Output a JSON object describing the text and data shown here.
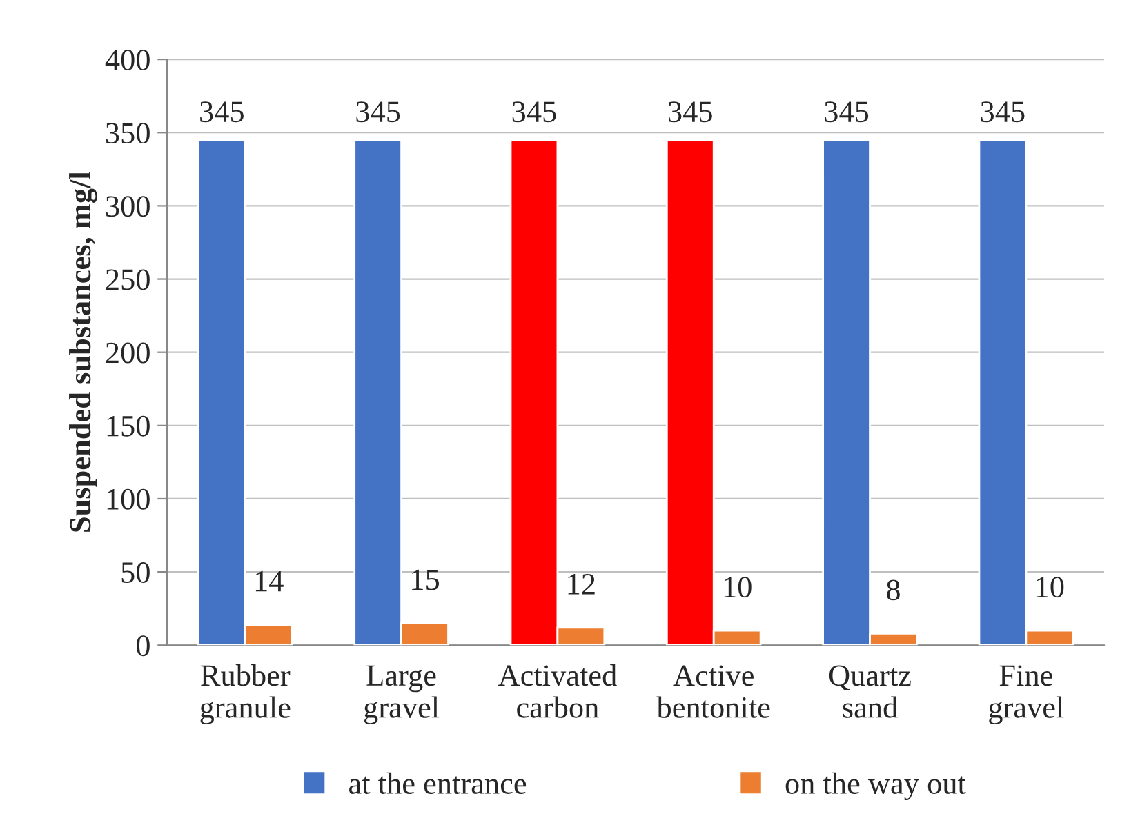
{
  "chart_data": {
    "type": "bar",
    "ylabel": "Suspended substances, mg/l",
    "categories": [
      "Rubber\ngranule",
      "Large\ngravel",
      "Activated\ncarbon",
      "Active\nbentonite",
      "Quartz\nsand",
      "Fine\ngravel"
    ],
    "series": [
      {
        "name": "at the entrance",
        "color": "#4472c4",
        "colors": [
          "#4472c4",
          "#4472c4",
          "#ff0000",
          "#ff0000",
          "#4472c4",
          "#4472c4"
        ],
        "values": [
          345,
          345,
          345,
          345,
          345,
          345
        ]
      },
      {
        "name": "on the way out",
        "color": "#ed7d31",
        "values": [
          14,
          15,
          12,
          10,
          8,
          10
        ]
      }
    ],
    "ylim": [
      0,
      400
    ],
    "yticks": [
      0,
      50,
      100,
      150,
      200,
      250,
      300,
      350,
      400
    ],
    "grid": "y",
    "legend": "bottom",
    "data_labels": true
  }
}
